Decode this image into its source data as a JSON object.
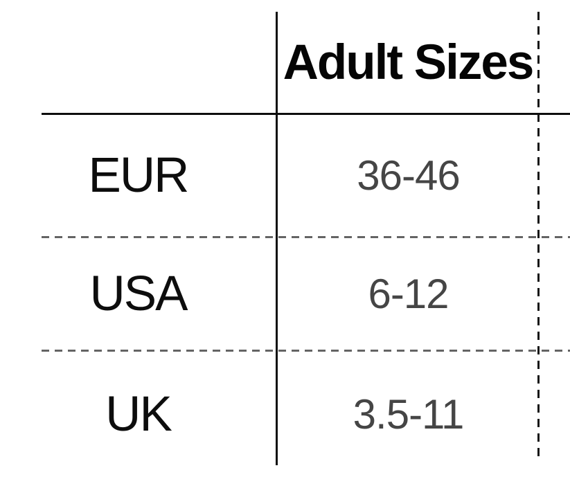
{
  "chart_data": {
    "type": "table",
    "title": "Adult Sizes",
    "columns": [
      "",
      "Adult Sizes"
    ],
    "rows": [
      [
        "EUR",
        "36-46"
      ],
      [
        "USA",
        "6-12"
      ],
      [
        "UK",
        "3.5-11"
      ]
    ],
    "layout": {
      "legend": "none",
      "grid": "solid column divider and header underline; dashed gray row dividers; dashed black right margin line"
    }
  },
  "colors": {
    "background": "#ffffff",
    "label_text": "#0d0d0d",
    "header_text": "#050505",
    "value_text": "#454545",
    "solid_line": "#0d0d0d",
    "dashed_row_line": "#646464",
    "dashed_margin_line": "#151515"
  }
}
